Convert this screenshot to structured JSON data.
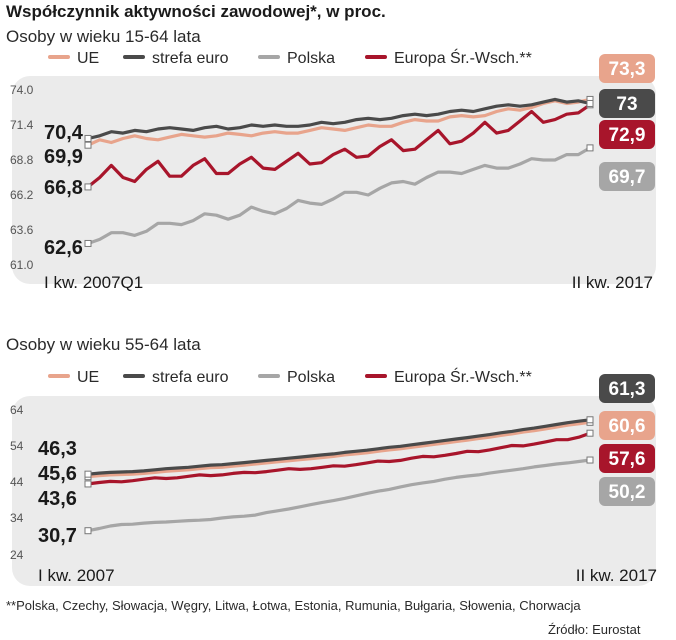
{
  "title": "Współczynnik aktywności zawodowej*, w proc.",
  "footnote": "**Polska, Czechy, Słowacja, Węgry, Litwa, Łotwa, Estonia, Rumunia, Bułgaria, Słowenia, Chorwacja",
  "source": "Źródło: Eurostat",
  "colors": {
    "UE": "#e8a48c",
    "strefa_euro": "#4a4a4a",
    "Polska": "#a6a6a6",
    "Europa": "#a8152b",
    "plot_bg": "#ebebeb"
  },
  "chart_data": [
    {
      "type": "line",
      "title": "Osoby w wieku 15-64 lata",
      "legend": [
        "UE",
        "strefa euro",
        "Polska",
        "Europa Śr.-Wsch.**"
      ],
      "x_start_label": "I kw. 2007Q1",
      "x_end_label": "II kw. 2017",
      "ylim": [
        61.0,
        74.0
      ],
      "y_ticks": [
        "74.0",
        "71.4",
        "68.8",
        "66.2",
        "63.6",
        "61.0"
      ],
      "start_labels": [
        "70,4",
        "69,9",
        "66,8",
        "62,6"
      ],
      "end_labels": [
        "73,3",
        "73",
        "72,9",
        "69,7"
      ],
      "series": [
        {
          "name": "UE",
          "values": [
            69.9,
            70.3,
            70.1,
            70.4,
            70.6,
            70.4,
            70.3,
            70.5,
            70.7,
            70.6,
            70.5,
            70.6,
            70.8,
            70.7,
            70.6,
            70.8,
            70.9,
            70.8,
            70.8,
            71.0,
            71.2,
            71.1,
            71.0,
            71.2,
            71.4,
            71.3,
            71.3,
            71.6,
            71.8,
            71.7,
            71.7,
            72.0,
            72.1,
            72.0,
            72.1,
            72.4,
            72.6,
            72.5,
            72.7,
            73.0,
            73.2,
            73.0,
            73.1,
            73.3
          ]
        },
        {
          "name": "strefa euro",
          "values": [
            70.4,
            70.6,
            70.9,
            70.8,
            71.0,
            70.9,
            71.1,
            71.2,
            71.1,
            71.0,
            71.2,
            71.3,
            71.1,
            71.2,
            71.4,
            71.3,
            71.4,
            71.3,
            71.3,
            71.4,
            71.6,
            71.5,
            71.6,
            71.8,
            71.9,
            71.8,
            71.9,
            72.1,
            72.2,
            72.1,
            72.2,
            72.4,
            72.5,
            72.4,
            72.6,
            72.8,
            72.9,
            72.8,
            72.9,
            73.1,
            73.3,
            73.1,
            73.2,
            73.0
          ]
        },
        {
          "name": "Polska",
          "values": [
            62.6,
            62.9,
            63.4,
            63.4,
            63.2,
            63.5,
            64.1,
            64.1,
            64.0,
            64.3,
            64.8,
            64.7,
            64.4,
            64.7,
            65.3,
            65.0,
            64.8,
            65.2,
            65.8,
            65.6,
            65.5,
            65.9,
            66.4,
            66.4,
            66.2,
            66.7,
            67.1,
            67.2,
            67.0,
            67.5,
            67.9,
            67.9,
            67.8,
            68.1,
            68.4,
            68.2,
            68.2,
            68.5,
            68.9,
            68.8,
            68.8,
            69.2,
            69.2,
            69.7
          ]
        },
        {
          "name": "Europa Śr.-Wsch.**",
          "values": [
            66.8,
            67.5,
            68.4,
            67.5,
            67.2,
            68.1,
            68.7,
            67.6,
            67.6,
            68.4,
            68.9,
            67.8,
            67.8,
            68.5,
            69.0,
            68.2,
            68.1,
            68.7,
            69.3,
            68.5,
            68.6,
            69.2,
            69.6,
            69.0,
            69.1,
            69.8,
            70.3,
            69.5,
            69.6,
            70.3,
            71.0,
            70.0,
            70.2,
            70.8,
            71.6,
            70.8,
            71.0,
            71.7,
            72.4,
            71.6,
            71.8,
            72.2,
            72.3,
            72.9
          ]
        }
      ]
    },
    {
      "type": "line",
      "title": "Osoby w wieku 55-64 lata",
      "legend": [
        "UE",
        "strefa euro",
        "Polska",
        "Europa Śr.-Wsch.**"
      ],
      "x_start_label": "I kw. 2007",
      "x_end_label": "II kw. 2017",
      "ylim": [
        24,
        64
      ],
      "y_ticks": [
        "64",
        "54",
        "44",
        "34",
        "24"
      ],
      "start_labels": [
        "46,3",
        "45,6",
        "43,6",
        "30,7"
      ],
      "end_labels": [
        "61,3",
        "60,6",
        "57,6",
        "50,2"
      ],
      "series": [
        {
          "name": "UE",
          "values": [
            45.6,
            45.9,
            46.1,
            46.2,
            46.3,
            46.5,
            46.8,
            47.1,
            47.3,
            47.5,
            47.8,
            48.1,
            48.2,
            48.5,
            48.8,
            49.1,
            49.4,
            49.7,
            50.0,
            50.3,
            50.6,
            50.9,
            51.2,
            51.6,
            51.9,
            52.2,
            52.6,
            53.0,
            53.3,
            53.7,
            54.1,
            54.5,
            54.9,
            55.3,
            55.7,
            56.1,
            56.5,
            57.0,
            57.4,
            57.9,
            58.3,
            58.8,
            59.3,
            59.8,
            60.2,
            60.6
          ]
        },
        {
          "name": "strefa euro",
          "values": [
            46.3,
            46.6,
            46.8,
            46.9,
            47.0,
            47.2,
            47.5,
            47.8,
            48.0,
            48.2,
            48.5,
            48.8,
            48.9,
            49.2,
            49.5,
            49.8,
            50.1,
            50.4,
            50.7,
            51.0,
            51.3,
            51.6,
            51.9,
            52.3,
            52.6,
            52.9,
            53.3,
            53.7,
            54.0,
            54.4,
            54.8,
            55.2,
            55.6,
            56.0,
            56.4,
            56.8,
            57.2,
            57.7,
            58.1,
            58.6,
            59.0,
            59.5,
            60.0,
            60.5,
            60.9,
            61.3
          ]
        },
        {
          "name": "Polska",
          "values": [
            30.7,
            31.3,
            32.0,
            32.4,
            32.5,
            32.8,
            33.0,
            33.1,
            33.3,
            33.5,
            33.6,
            33.8,
            34.2,
            34.5,
            34.7,
            35.0,
            35.7,
            36.2,
            36.7,
            37.3,
            37.9,
            38.5,
            39.0,
            39.6,
            40.3,
            41.0,
            41.6,
            42.1,
            42.8,
            43.4,
            43.9,
            44.3,
            44.9,
            45.4,
            45.8,
            46.1,
            46.6,
            47.0,
            47.4,
            47.8,
            48.3,
            48.7,
            49.1,
            49.4,
            49.8,
            50.2
          ]
        },
        {
          "name": "Europa Śr.-Wsch.**",
          "values": [
            43.6,
            44.0,
            44.3,
            44.2,
            44.5,
            44.9,
            45.3,
            45.1,
            45.3,
            45.7,
            46.1,
            45.9,
            46.1,
            46.5,
            46.8,
            46.7,
            47.0,
            47.4,
            47.8,
            47.6,
            47.8,
            48.2,
            48.6,
            48.5,
            48.9,
            49.4,
            49.9,
            49.8,
            50.1,
            50.7,
            51.2,
            51.1,
            51.5,
            52.0,
            52.6,
            52.5,
            53.0,
            53.6,
            54.2,
            54.1,
            54.6,
            55.2,
            55.8,
            55.8,
            56.5,
            57.6
          ]
        }
      ]
    }
  ]
}
